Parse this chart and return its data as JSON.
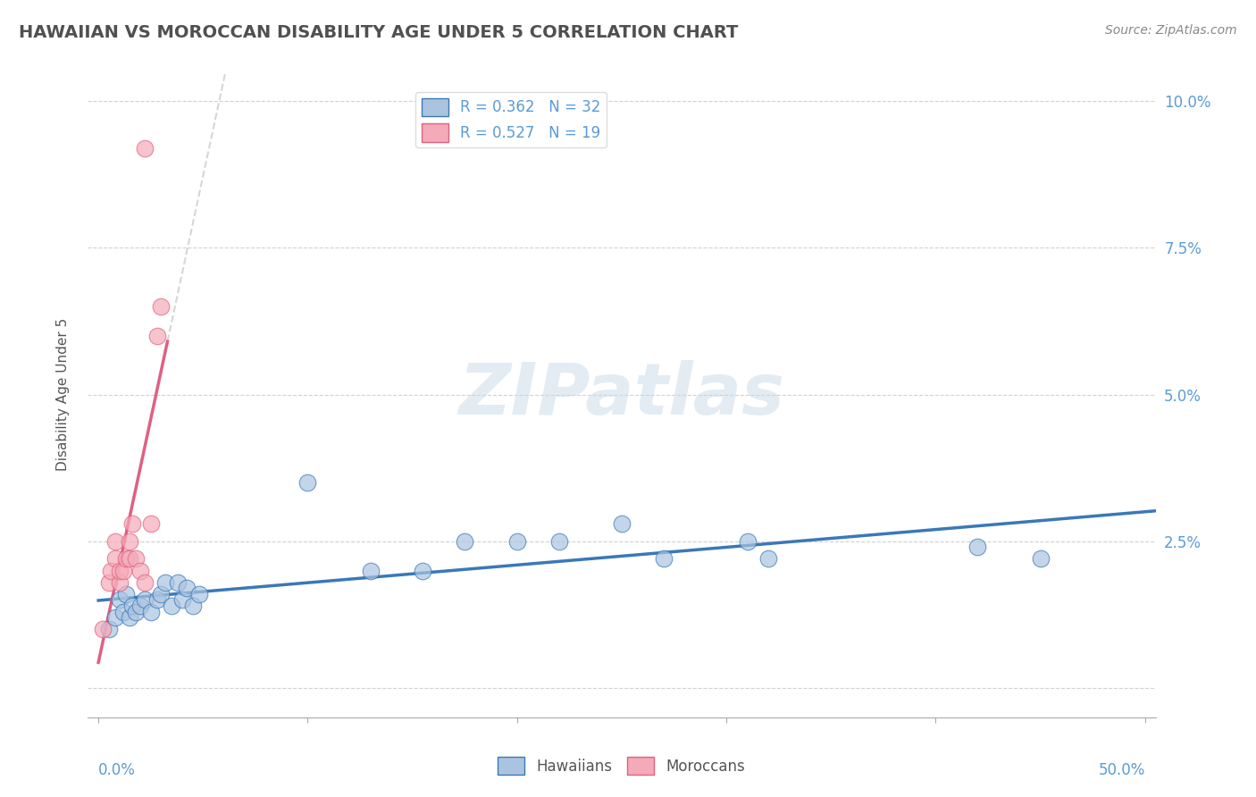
{
  "title": "HAWAIIAN VS MOROCCAN DISABILITY AGE UNDER 5 CORRELATION CHART",
  "source": "Source: ZipAtlas.com",
  "ylabel": "Disability Age Under 5",
  "y_ticks": [
    0.0,
    0.025,
    0.05,
    0.075,
    0.1
  ],
  "y_tick_labels": [
    "",
    "2.5%",
    "5.0%",
    "7.5%",
    "10.0%"
  ],
  "xlim": [
    -0.005,
    0.505
  ],
  "ylim": [
    -0.005,
    0.105
  ],
  "watermark": "ZIPatlas",
  "legend_R_hawaiian": "R = 0.362",
  "legend_N_hawaiian": "N = 32",
  "legend_R_moroccan": "R = 0.527",
  "legend_N_moroccan": "N = 19",
  "hawaiian_color": "#aac4e0",
  "moroccan_color": "#f4aab8",
  "hawaiian_line_color": "#3a78b8",
  "moroccan_line_color": "#e06080",
  "background_color": "#ffffff",
  "grid_color": "#cccccc",
  "title_color": "#505050",
  "axis_label_color": "#5b9bd5",
  "hawaiians_x": [
    0.005,
    0.008,
    0.01,
    0.012,
    0.013,
    0.015,
    0.016,
    0.018,
    0.02,
    0.022,
    0.025,
    0.028,
    0.03,
    0.032,
    0.035,
    0.038,
    0.04,
    0.042,
    0.045,
    0.048,
    0.1,
    0.13,
    0.155,
    0.175,
    0.2,
    0.22,
    0.25,
    0.27,
    0.31,
    0.32,
    0.42,
    0.45
  ],
  "hawaiians_y": [
    0.01,
    0.012,
    0.015,
    0.013,
    0.016,
    0.012,
    0.014,
    0.013,
    0.014,
    0.015,
    0.013,
    0.015,
    0.016,
    0.018,
    0.014,
    0.018,
    0.015,
    0.017,
    0.014,
    0.016,
    0.035,
    0.02,
    0.02,
    0.025,
    0.025,
    0.025,
    0.028,
    0.022,
    0.025,
    0.022,
    0.024,
    0.022
  ],
  "moroccans_x": [
    0.002,
    0.005,
    0.006,
    0.008,
    0.008,
    0.01,
    0.01,
    0.012,
    0.013,
    0.015,
    0.015,
    0.016,
    0.018,
    0.02,
    0.022,
    0.025,
    0.028,
    0.03,
    0.022
  ],
  "moroccans_y": [
    0.01,
    0.018,
    0.02,
    0.022,
    0.025,
    0.018,
    0.02,
    0.02,
    0.022,
    0.025,
    0.022,
    0.028,
    0.022,
    0.02,
    0.018,
    0.028,
    0.06,
    0.065,
    0.092
  ]
}
